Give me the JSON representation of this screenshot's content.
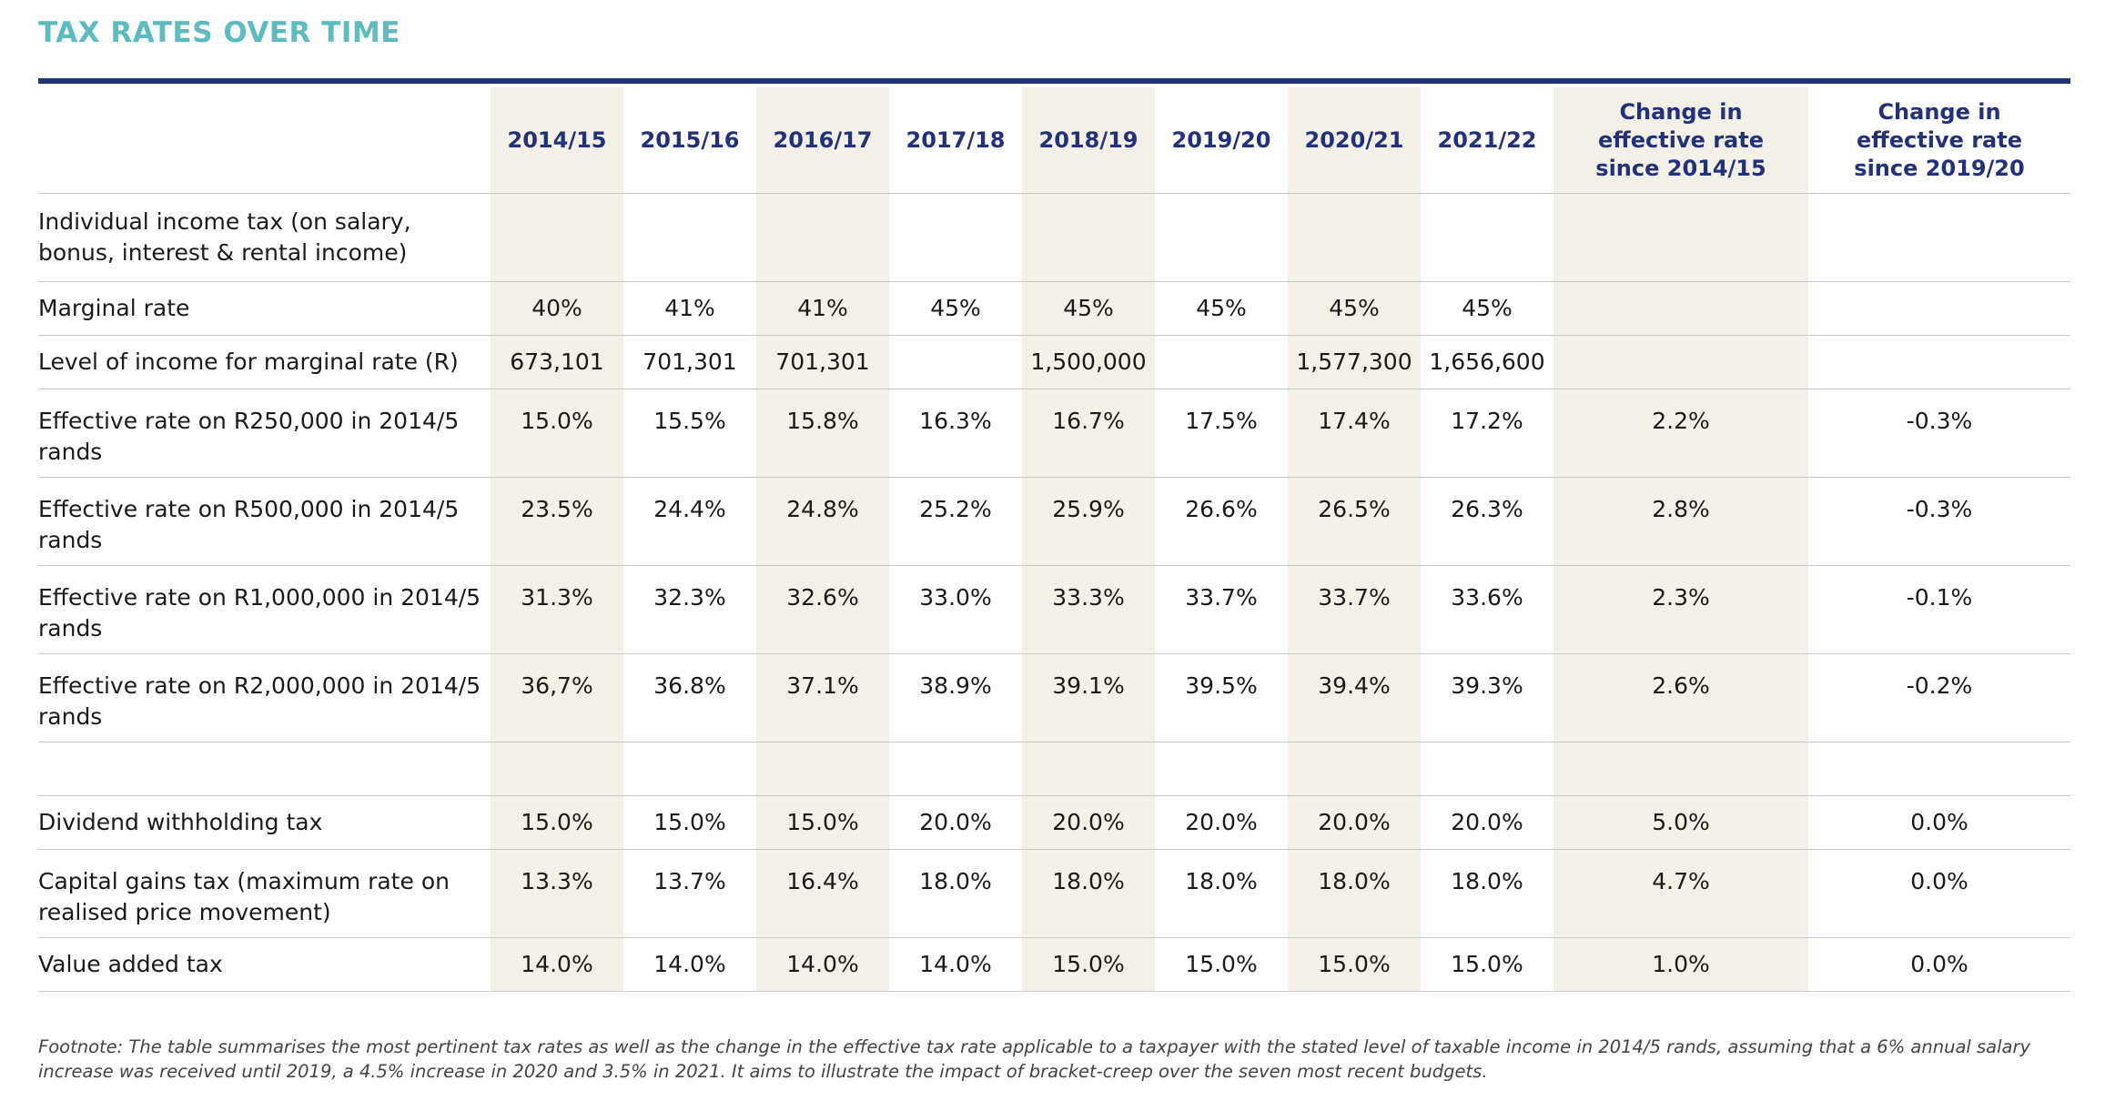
{
  "title": "TAX RATES OVER TIME",
  "columns": [
    "",
    "2014/15",
    "2015/16",
    "2016/17",
    "2017/18",
    "2018/19",
    "2019/20",
    "2020/21",
    "2021/22",
    "Change in effective rate since 2014/15",
    "Change in effective rate since 2019/20"
  ],
  "rows": [
    {
      "kind": "section",
      "cells": [
        "Individual income tax (on salary, bonus, interest & rental income)",
        "",
        "",
        "",
        "",
        "",
        "",
        "",
        "",
        "",
        ""
      ]
    },
    {
      "kind": "single",
      "cells": [
        "Marginal rate",
        "40%",
        "41%",
        "41%",
        "45%",
        "45%",
        "45%",
        "45%",
        "45%",
        "",
        ""
      ]
    },
    {
      "kind": "single",
      "cells": [
        "Level of income for marginal rate (R)",
        "673,101",
        "701,301",
        "701,301",
        "",
        "1,500,000",
        "",
        "1,577,300",
        "1,656,600",
        "",
        ""
      ]
    },
    {
      "kind": "double",
      "cells": [
        "Effective rate on R250,000 in 2014/5 rands",
        "15.0%",
        "15.5%",
        "15.8%",
        "16.3%",
        "16.7%",
        "17.5%",
        "17.4%",
        "17.2%",
        "2.2%",
        "-0.3%"
      ]
    },
    {
      "kind": "double",
      "cells": [
        "Effective rate on R500,000 in 2014/5 rands",
        "23.5%",
        "24.4%",
        "24.8%",
        "25.2%",
        "25.9%",
        "26.6%",
        "26.5%",
        "26.3%",
        "2.8%",
        "-0.3%"
      ]
    },
    {
      "kind": "double",
      "cells": [
        "Effective rate on R1,000,000 in 2014/5 rands",
        "31.3%",
        "32.3%",
        "32.6%",
        "33.0%",
        "33.3%",
        "33.7%",
        "33.7%",
        "33.6%",
        "2.3%",
        "-0.1%"
      ]
    },
    {
      "kind": "double",
      "cells": [
        "Effective rate on R2,000,000 in 2014/5 rands",
        "36,7%",
        "36.8%",
        "37.1%",
        "38.9%",
        "39.1%",
        "39.5%",
        "39.4%",
        "39.3%",
        "2.6%",
        "-0.2%"
      ]
    },
    {
      "kind": "blank",
      "cells": [
        "",
        "",
        "",
        "",
        "",
        "",
        "",
        "",
        "",
        "",
        ""
      ]
    },
    {
      "kind": "single",
      "cells": [
        "Dividend withholding tax",
        "15.0%",
        "15.0%",
        "15.0%",
        "20.0%",
        "20.0%",
        "20.0%",
        "20.0%",
        "20.0%",
        "5.0%",
        "0.0%"
      ]
    },
    {
      "kind": "double",
      "cells": [
        "Capital gains tax (maximum rate on realised price movement)",
        "13.3%",
        "13.7%",
        "16.4%",
        "18.0%",
        "18.0%",
        "18.0%",
        "18.0%",
        "18.0%",
        "4.7%",
        "0.0%"
      ]
    },
    {
      "kind": "single",
      "cells": [
        "Value added tax",
        "14.0%",
        "14.0%",
        "14.0%",
        "14.0%",
        "15.0%",
        "15.0%",
        "15.0%",
        "15.0%",
        "1.0%",
        "0.0%"
      ]
    }
  ],
  "footnote": "Footnote: The table summarises the most pertinent tax rates as well as the change in the effective tax rate applicable to a taxpayer with the stated level of taxable income in 2014/5 rands, assuming that a 6% annual salary increase was received until 2019, a 4.5% increase in 2020 and 3.5% in 2021. It aims to illustrate the impact of bracket-creep over the seven most recent budgets.",
  "colors": {
    "title": "#5cbcbf",
    "header_text": "#22317a",
    "rule": "#22317a",
    "shade": "#f3f0e8",
    "grid": "#c9c9c9"
  }
}
